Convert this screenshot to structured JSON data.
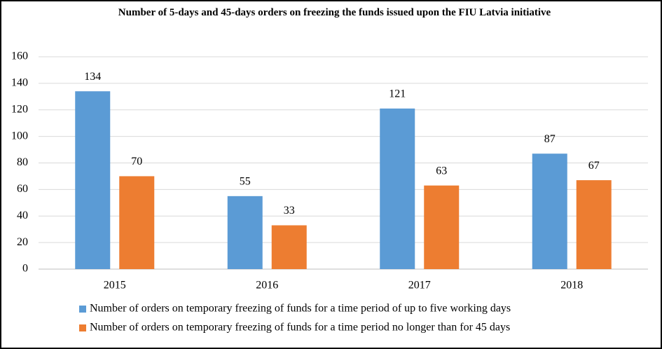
{
  "chart_data": {
    "type": "bar",
    "title": "Number of 5-days and 45-days orders on freezing the funds issued upon the FIU Latvia initiative",
    "categories": [
      "2015",
      "2016",
      "2017",
      "2018"
    ],
    "series": [
      {
        "name": "Number of orders on temporary freezing of funds for a time period of up to five working days",
        "color": "#5b9bd5",
        "values": [
          134,
          55,
          121,
          87
        ]
      },
      {
        "name": "Number of orders on temporary freezing of funds for a time period no longer than for 45 days",
        "color": "#ed7d31",
        "values": [
          70,
          33,
          63,
          67
        ]
      }
    ],
    "ylim": [
      0,
      160
    ],
    "yticks": [
      0,
      20,
      40,
      60,
      80,
      100,
      120,
      140,
      160
    ],
    "grid": true,
    "legend": "bottom"
  }
}
